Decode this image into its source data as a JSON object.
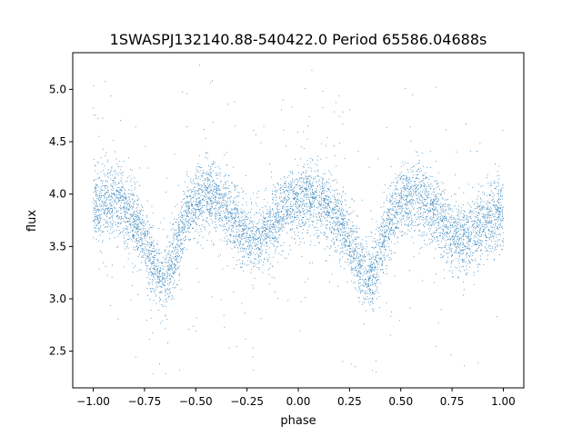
{
  "chart_data": {
    "type": "scatter",
    "title": "1SWASPJ132140.88-540422.0 Period 65586.04688s",
    "xlabel": "phase",
    "ylabel": "flux",
    "xlim": [
      -1.1,
      1.1
    ],
    "ylim": [
      2.15,
      5.35
    ],
    "x_ticks": [
      -1.0,
      -0.75,
      -0.5,
      -0.25,
      0.0,
      0.25,
      0.5,
      0.75,
      1.0
    ],
    "x_tick_labels": [
      "−1.00",
      "−0.75",
      "−0.50",
      "−0.25",
      "0.00",
      "0.25",
      "0.50",
      "0.75",
      "1.00"
    ],
    "y_ticks": [
      2.5,
      3.0,
      3.5,
      4.0,
      4.5,
      5.0
    ],
    "y_tick_labels": [
      "2.5",
      "3.0",
      "3.5",
      "4.0",
      "4.5",
      "5.0"
    ],
    "grid": false,
    "marker_color": "#1f77b4",
    "series": [
      {
        "x": [
          -1.0,
          -0.95,
          -0.9,
          -0.85,
          -0.8,
          -0.75,
          -0.7,
          -0.65,
          -0.6,
          -0.55,
          -0.5,
          -0.45,
          -0.4,
          -0.35,
          -0.3,
          -0.25,
          -0.2,
          -0.15,
          -0.1,
          -0.05,
          0.0,
          0.05,
          0.1,
          0.15,
          0.2,
          0.25,
          0.3,
          0.35,
          0.4,
          0.45,
          0.5,
          0.55,
          0.6,
          0.65,
          0.7,
          0.75,
          0.8,
          0.85,
          0.9,
          0.95,
          1.0
        ],
        "y": [
          3.87,
          3.92,
          3.93,
          3.88,
          3.75,
          3.55,
          3.32,
          3.18,
          3.45,
          3.78,
          3.92,
          3.98,
          3.95,
          3.86,
          3.73,
          3.62,
          3.55,
          3.62,
          3.77,
          3.88,
          3.95,
          3.98,
          3.93,
          3.85,
          3.75,
          3.55,
          3.32,
          3.18,
          3.45,
          3.78,
          3.92,
          3.98,
          3.95,
          3.87,
          3.74,
          3.63,
          3.56,
          3.62,
          3.72,
          3.8,
          3.85
        ]
      }
    ]
  }
}
